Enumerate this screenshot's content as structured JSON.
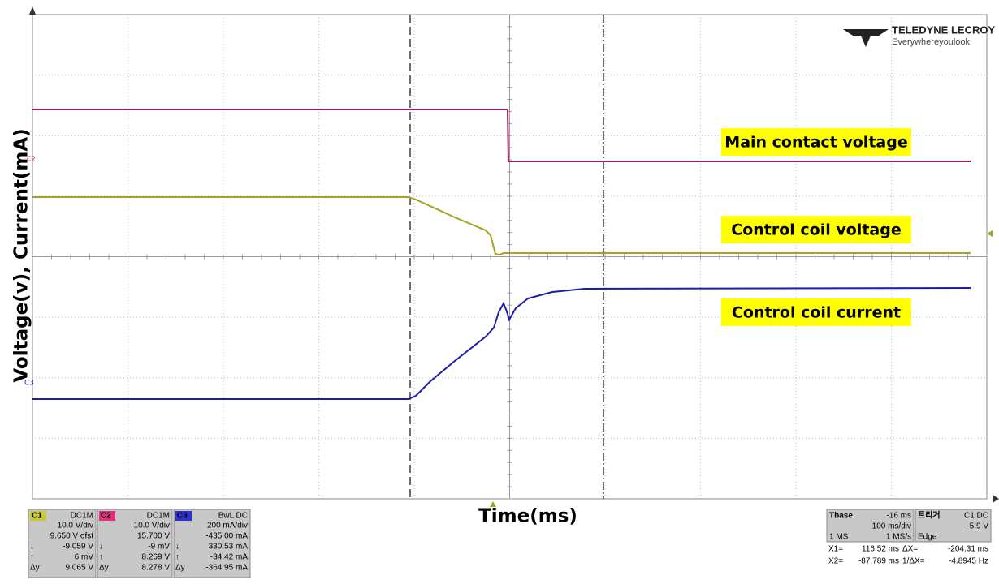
{
  "axis_labels": {
    "y": "Voltage(v), Current(mA)",
    "x": "Time(ms)"
  },
  "annotations": [
    "Main contact voltage",
    "Control coil voltage",
    "Control coil current"
  ],
  "logo": {
    "brand": "TELEDYNE LECROY",
    "tagline": "Everywhereyoulook"
  },
  "trace_markers": [
    "C2",
    "C3"
  ],
  "channels": [
    {
      "name": "C1",
      "coupling": "DC1M",
      "rows": [
        [
          "",
          "10.0 V/div"
        ],
        [
          "",
          "9.650 V ofst"
        ],
        [
          "↓",
          "-9.059 V"
        ],
        [
          "↑",
          "6 mV"
        ],
        [
          "Δy",
          "9.065 V"
        ]
      ]
    },
    {
      "name": "C2",
      "coupling": "DC1M",
      "rows": [
        [
          "",
          "10.0 V/div"
        ],
        [
          "",
          "15.700 V"
        ],
        [
          "↓",
          "-9 mV"
        ],
        [
          "↑",
          "8.269 V"
        ],
        [
          "Δy",
          "8.278 V"
        ]
      ]
    },
    {
      "name": "C3",
      "coupling": "BwL DC",
      "rows": [
        [
          "",
          "200 mA/div"
        ],
        [
          "",
          "-435.00 mA"
        ],
        [
          "↓",
          "330.53 mA"
        ],
        [
          "↑",
          "-34.42 mA"
        ],
        [
          "Δy",
          "-364.95 mA"
        ]
      ]
    }
  ],
  "timebase": {
    "title": "Tbase",
    "delay": "-16 ms",
    "scale": "100 ms/div",
    "memory": "1 MS",
    "rate": "1 MS/s"
  },
  "trigger": {
    "title": "트리거",
    "source": "C1 DC",
    "level": "-5.9 V",
    "mode": "Edge"
  },
  "cursors": [
    [
      "X1=",
      "116.52 ms",
      "ΔX=",
      "-204.31 ms"
    ],
    [
      "X2=",
      "-87.789 ms",
      "1/ΔX=",
      "-4.8945 Hz"
    ]
  ]
}
